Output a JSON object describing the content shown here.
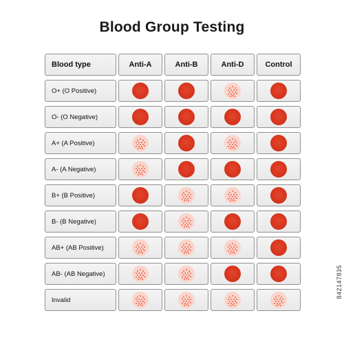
{
  "title": "Blood Group Testing",
  "headers": [
    "Blood type",
    "Anti-A",
    "Anti-B",
    "Anti-D",
    "Control"
  ],
  "rows": [
    {
      "label": "O+ (O Positive)",
      "results": [
        "solid",
        "solid",
        "agg",
        "solid"
      ]
    },
    {
      "label": "O- (O Negative)",
      "results": [
        "solid",
        "solid",
        "solid",
        "solid"
      ]
    },
    {
      "label": "A+ (A Positive)",
      "results": [
        "agg",
        "solid",
        "agg",
        "solid"
      ]
    },
    {
      "label": "A- (A Negative)",
      "results": [
        "agg",
        "solid",
        "solid",
        "solid"
      ]
    },
    {
      "label": "B+ (B Positive)",
      "results": [
        "solid",
        "agg",
        "agg",
        "solid"
      ]
    },
    {
      "label": "B- (B Negative)",
      "results": [
        "solid",
        "agg",
        "solid",
        "solid"
      ]
    },
    {
      "label": "AB+ (AB Positive)",
      "results": [
        "agg",
        "agg",
        "agg",
        "solid"
      ]
    },
    {
      "label": "AB- (AB Negative)",
      "results": [
        "agg",
        "agg",
        "solid",
        "solid"
      ]
    },
    {
      "label": "Invalid",
      "results": [
        "agg",
        "agg",
        "agg",
        "agg"
      ]
    }
  ],
  "stock_id": "842147835",
  "colors": {
    "solid": "#d8361f",
    "agg_bg": "#f9d5cc",
    "agg_dots": "#e0442c"
  }
}
